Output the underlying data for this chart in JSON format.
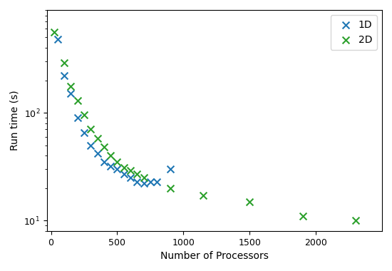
{
  "title": "",
  "xlabel": "Number of Processors",
  "ylabel": "Run time (s)",
  "x1d": [
    50,
    100,
    150,
    200,
    250,
    300,
    350,
    400,
    450,
    500,
    550,
    600,
    650,
    700,
    750,
    800,
    900
  ],
  "y1d": [
    480,
    220,
    150,
    90,
    65,
    50,
    42,
    35,
    32,
    30,
    27,
    25,
    23,
    22,
    23,
    23,
    30
  ],
  "x2d": [
    25,
    100,
    150,
    200,
    250,
    300,
    350,
    400,
    450,
    500,
    550,
    600,
    650,
    700,
    900,
    1150,
    1500,
    1900,
    2300
  ],
  "y2d": [
    560,
    290,
    175,
    130,
    95,
    70,
    58,
    48,
    40,
    35,
    31,
    29,
    27,
    25,
    20,
    17,
    15,
    11,
    10
  ],
  "color_1d": "#1f77b4",
  "color_2d": "#2ca02c",
  "ylim_bottom": 8,
  "ylim_top": 900,
  "xlim_left": -30,
  "xlim_right": 2500,
  "legend_loc": "upper right"
}
